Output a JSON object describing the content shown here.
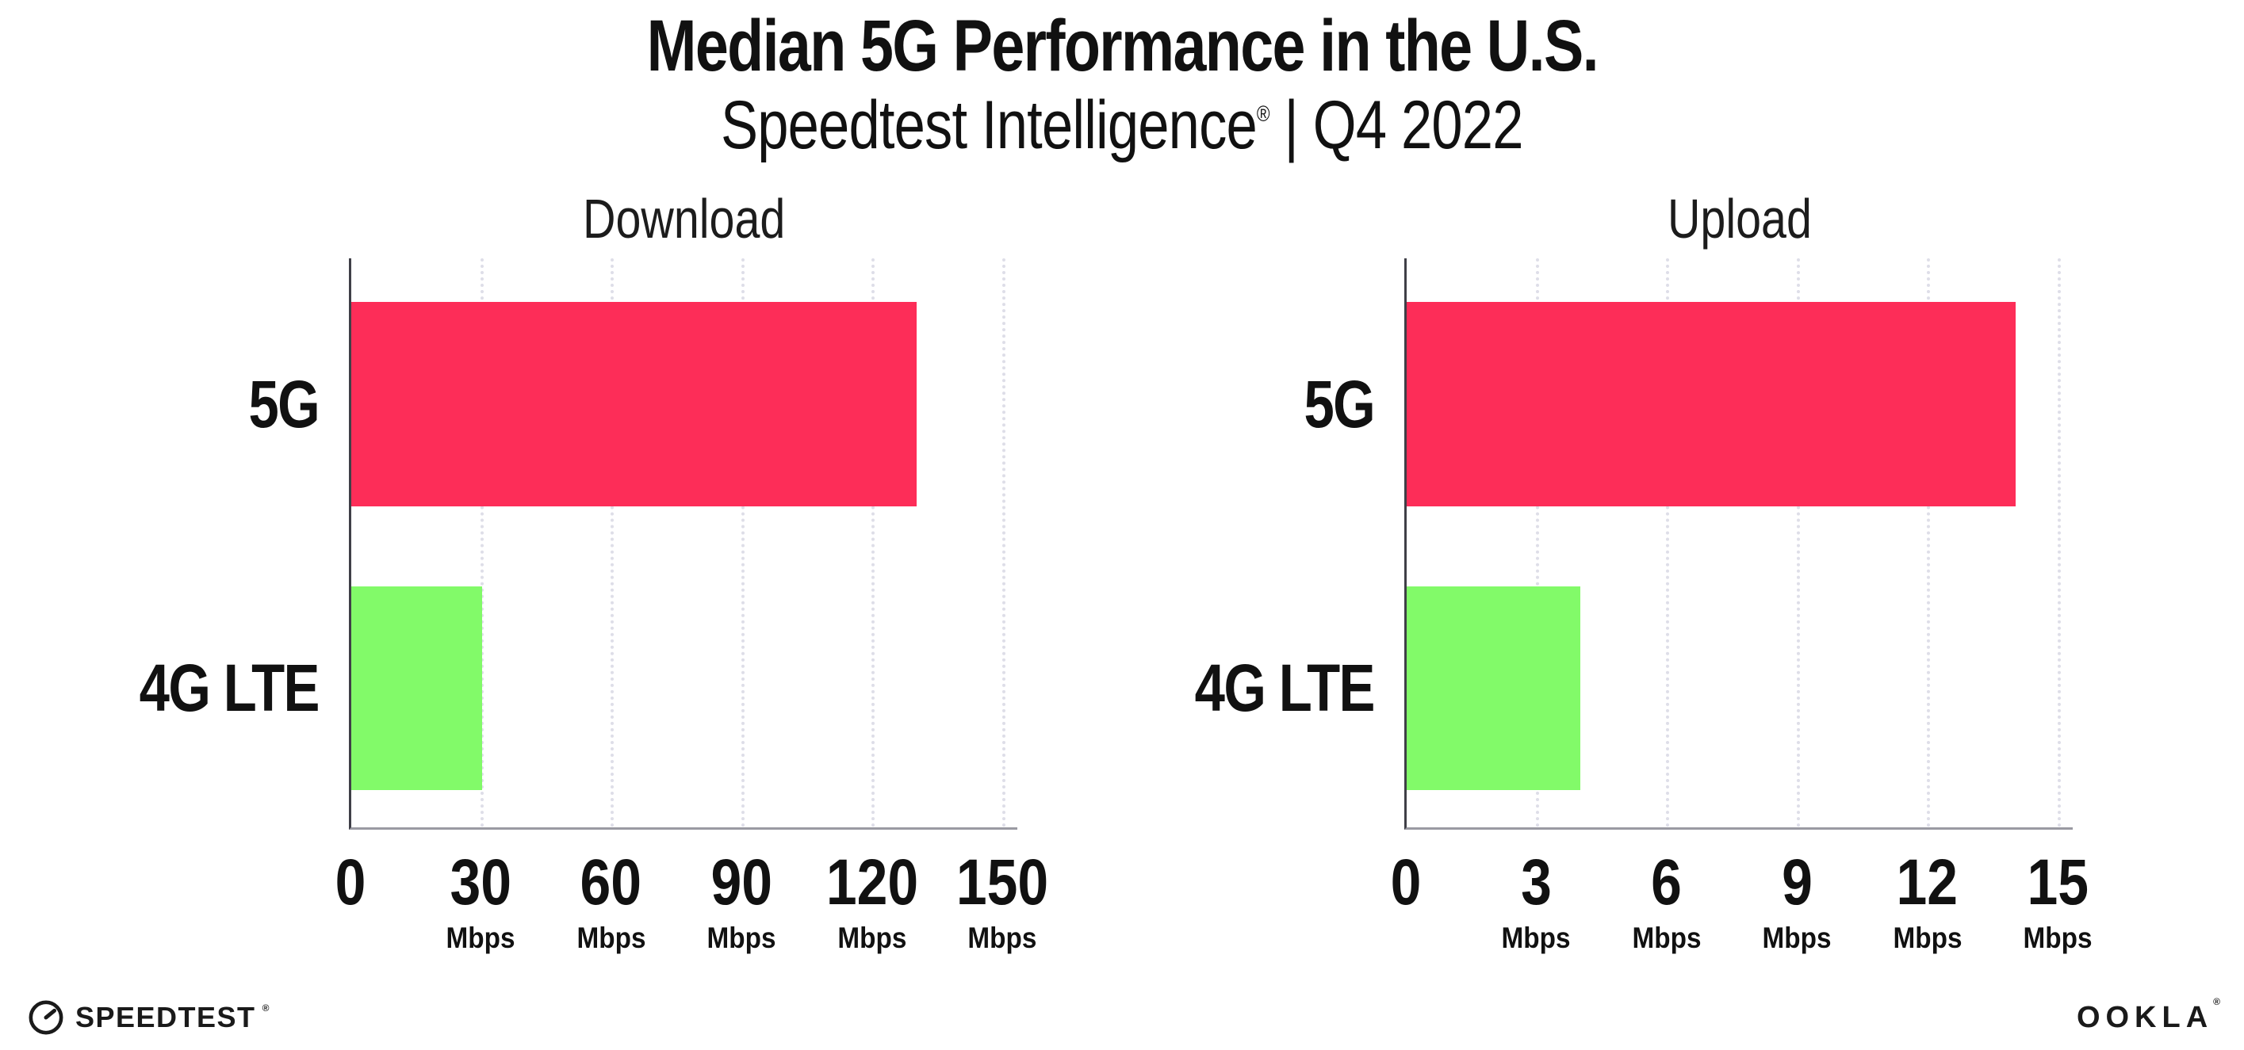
{
  "page": {
    "title": "Median 5G Performance in the U.S.",
    "subtitle": {
      "brand": "Speedtest Intelligence",
      "reg": "®",
      "rest": " | Q4 2022"
    }
  },
  "footer": {
    "speedtest_label": "SPEEDTEST",
    "speedtest_reg": "®",
    "ookla_label": "OOKLA",
    "ookla_reg": "®"
  },
  "colors": {
    "bar_5g": "#FD2D58",
    "bar_4g_lte": "#82FA69",
    "grid_dots": "#DEDEE8",
    "x_axis": "#9A9AA2",
    "y_axis": "#3F3F47",
    "text": "#111111"
  },
  "chart_data": [
    {
      "type": "bar",
      "orientation": "horizontal",
      "title": "Download",
      "categories": [
        "5G",
        "4G LTE"
      ],
      "values": [
        130,
        30
      ],
      "unit": "Mbps",
      "xlim": [
        0,
        150
      ],
      "xticks": [
        0,
        30,
        60,
        90,
        120,
        150
      ],
      "bar_colors": [
        "#FD2D58",
        "#82FA69"
      ],
      "grid": "vertical-dotted",
      "legend": "none"
    },
    {
      "type": "bar",
      "orientation": "horizontal",
      "title": "Upload",
      "categories": [
        "5G",
        "4G LTE"
      ],
      "values": [
        14,
        4
      ],
      "unit": "Mbps",
      "xlim": [
        0,
        15
      ],
      "xticks": [
        0,
        3,
        6,
        9,
        12,
        15
      ],
      "bar_colors": [
        "#FD2D58",
        "#82FA69"
      ],
      "grid": "vertical-dotted",
      "legend": "none"
    }
  ]
}
